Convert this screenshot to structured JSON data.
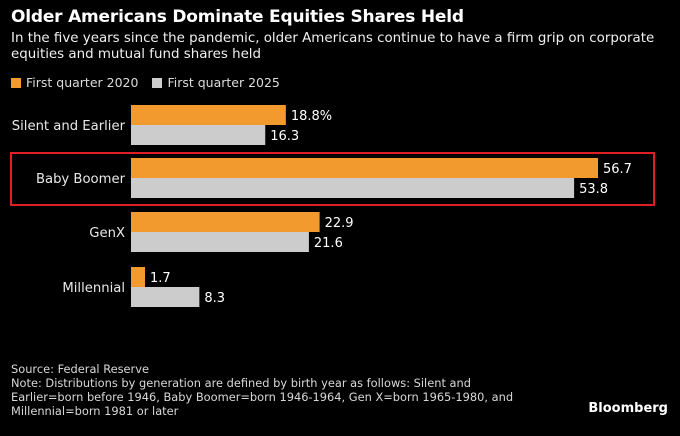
{
  "header": {
    "title": "Older Americans Dominate Equities Shares Held",
    "subtitle": "In the five years since the pandemic, older Americans continue to have a firm grip on corporate equities and mutual fund shares held"
  },
  "colors": {
    "series_2020": "#f29a2e",
    "series_2025": "#cccccc",
    "highlight_box": "#e01e26"
  },
  "chart_data": {
    "type": "bar",
    "orientation": "horizontal",
    "title": "Older Americans Dominate Equities Shares Held",
    "unit": "%",
    "categories": [
      "Silent and Earlier",
      "Baby Boomer",
      "GenX",
      "Millennial"
    ],
    "series": [
      {
        "name": "First quarter 2020",
        "values": [
          18.8,
          56.7,
          22.9,
          1.7
        ],
        "labels": [
          "18.8%",
          "56.7",
          "22.9",
          "1.7"
        ]
      },
      {
        "name": "First quarter 2025",
        "values": [
          16.3,
          53.8,
          21.6,
          8.3
        ],
        "labels": [
          "16.3",
          "53.8",
          "21.6",
          "8.3"
        ]
      }
    ],
    "xlim": [
      0,
      60
    ],
    "grid": false,
    "legend": "top-left",
    "highlighted_category": "Baby Boomer"
  },
  "footer": {
    "source": "Source: Federal Reserve",
    "note": "Note: Distributions by generation are defined by birth year as follows: Silent and Earlier=born before 1946, Baby Boomer=born 1946-1964, Gen X=born 1965-1980, and Millennial=born 1981 or later",
    "brand": "Bloomberg"
  }
}
